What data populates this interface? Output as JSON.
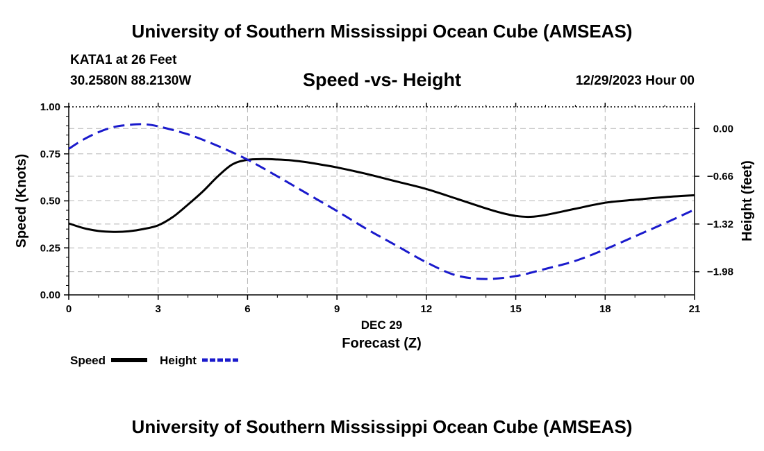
{
  "header": {
    "title": "University of Southern Mississippi Ocean Cube (AMSEAS)",
    "station": "KATA1 at 26 Feet",
    "coords": "30.2580N  88.2130W",
    "chart_title": "Speed -vs- Height",
    "datetime": "12/29/2023 Hour 00"
  },
  "footer": {
    "title": "University of Southern Mississippi Ocean Cube (AMSEAS)"
  },
  "colors": {
    "speed": "#000000",
    "height": "#1a1acc",
    "grid": "#b4b4b4"
  },
  "chart_data": {
    "type": "line",
    "title": "Speed -vs- Height",
    "xlabel": "Forecast (Z)",
    "xdate_label": "DEC 29",
    "xlim": [
      0,
      21
    ],
    "xticks": [
      0,
      3,
      6,
      9,
      12,
      15,
      18,
      21
    ],
    "xtick_labels": [
      "0",
      "3",
      "6",
      "9",
      "12",
      "15",
      "18",
      "21"
    ],
    "y_left": {
      "label": "Speed (Knots)",
      "lim": [
        0,
        1
      ],
      "ticks": [
        0,
        0.25,
        0.5,
        0.75,
        1.0
      ],
      "tick_labels": [
        "0.00",
        "0.25",
        "0.50",
        "0.75",
        "1.00"
      ]
    },
    "y_right": {
      "label": "Height (feet)",
      "lim": [
        -2.3,
        0.3
      ],
      "ticks": [
        0.0,
        -0.66,
        -1.32,
        -1.98
      ],
      "tick_labels": [
        "0.00",
        "−0.66",
        "−1.32",
        "−1.98"
      ]
    },
    "series": [
      {
        "name": "Speed",
        "axis": "left",
        "style": "solid",
        "x": [
          0,
          0.5,
          1,
          1.5,
          2,
          2.5,
          3,
          3.5,
          4,
          4.5,
          5,
          5.5,
          6,
          6.5,
          7,
          7.5,
          8,
          8.5,
          9,
          10,
          11,
          12,
          13,
          14,
          14.5,
          15,
          15.5,
          16,
          17,
          18,
          19,
          20,
          21
        ],
        "values": [
          0.38,
          0.355,
          0.34,
          0.335,
          0.338,
          0.35,
          0.37,
          0.415,
          0.48,
          0.55,
          0.63,
          0.695,
          0.718,
          0.722,
          0.72,
          0.715,
          0.705,
          0.692,
          0.678,
          0.643,
          0.603,
          0.563,
          0.512,
          0.46,
          0.437,
          0.42,
          0.415,
          0.425,
          0.458,
          0.49,
          0.506,
          0.52,
          0.53
        ]
      },
      {
        "name": "Height",
        "axis": "right",
        "style": "dashed",
        "x": [
          0,
          0.5,
          1,
          1.5,
          2,
          2.5,
          3,
          4,
          5,
          6,
          7,
          8,
          9,
          10,
          11,
          12,
          13,
          14,
          15,
          16,
          17,
          18,
          19,
          20,
          21
        ],
        "values": [
          -0.28,
          -0.15,
          -0.05,
          0.02,
          0.05,
          0.06,
          0.03,
          -0.08,
          -0.24,
          -0.43,
          -0.66,
          -0.9,
          -1.14,
          -1.39,
          -1.62,
          -1.85,
          -2.03,
          -2.08,
          -2.04,
          -1.94,
          -1.83,
          -1.67,
          -1.49,
          -1.31,
          -1.12
        ]
      }
    ],
    "legend": [
      {
        "name": "Speed",
        "style": "solid"
      },
      {
        "name": "Height",
        "style": "dashed"
      }
    ],
    "legend_position": "bottom-left",
    "grid": true
  }
}
